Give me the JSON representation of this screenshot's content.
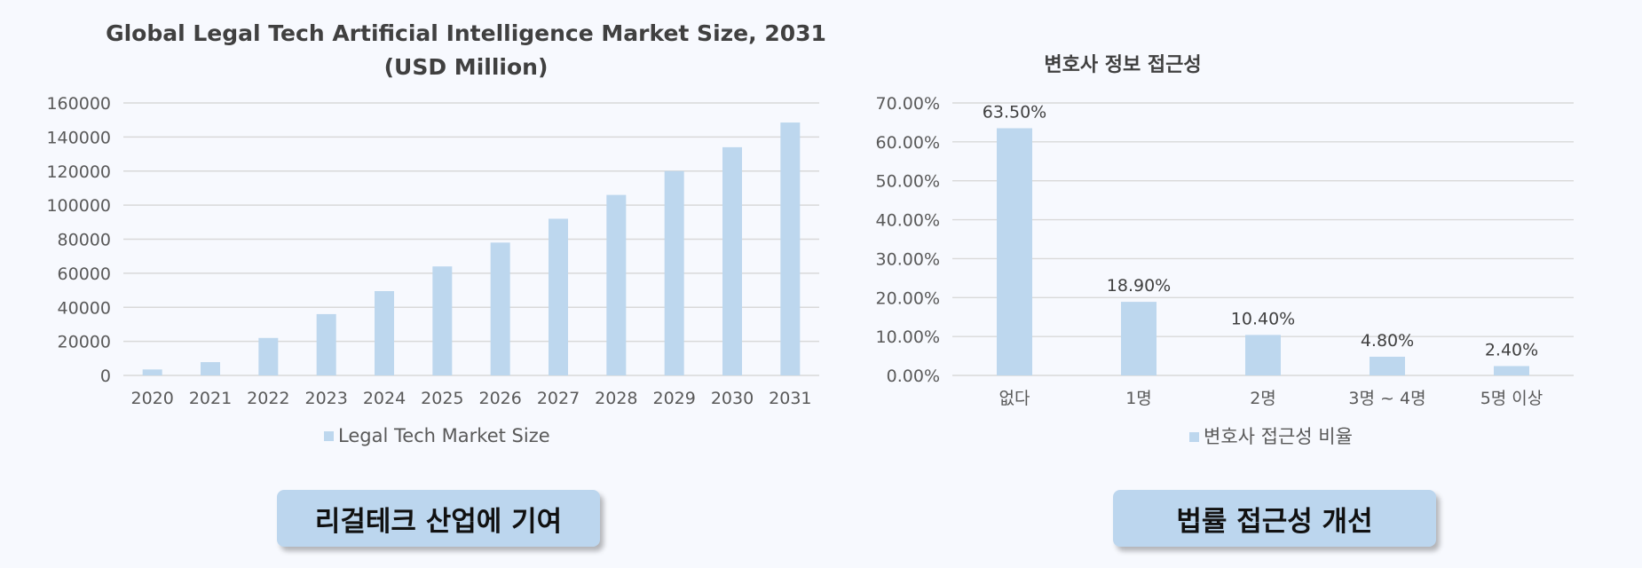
{
  "chart_data": [
    {
      "type": "bar",
      "title": "Global Legal Tech Artificial Intelligence Market Size, 2031",
      "subtitle": "(USD Million)",
      "categories": [
        "2020",
        "2021",
        "2022",
        "2023",
        "2024",
        "2025",
        "2026",
        "2027",
        "2028",
        "2029",
        "2030",
        "2031"
      ],
      "series": [
        {
          "name": "Legal Tech Market Size",
          "values": [
            3500,
            7800,
            22000,
            36000,
            49500,
            64000,
            78000,
            92000,
            106000,
            120000,
            134000,
            148500
          ]
        }
      ],
      "ylim": [
        0,
        160000
      ],
      "yticks": [
        "0",
        "20000",
        "40000",
        "60000",
        "80000",
        "100000",
        "120000",
        "140000",
        "160000"
      ],
      "grid": true,
      "legend": "bottom",
      "bar_color": "#bdd7ee"
    },
    {
      "type": "bar",
      "title": "변호사 정보 접근성",
      "categories": [
        "없다",
        "1명",
        "2명",
        "3명 ~ 4명",
        "5명 이상"
      ],
      "series": [
        {
          "name": "변호사 접근성 비율",
          "values": [
            63.5,
            18.9,
            10.4,
            4.8,
            2.4
          ]
        }
      ],
      "data_labels": [
        "63.50%",
        "18.90%",
        "10.40%",
        "4.80%",
        "2.40%"
      ],
      "ylim": [
        0,
        70
      ],
      "yticks": [
        "0.00%",
        "10.00%",
        "20.00%",
        "30.00%",
        "40.00%",
        "50.00%",
        "60.00%",
        "70.00%"
      ],
      "grid": true,
      "legend": "bottom",
      "bar_color": "#bdd7ee"
    }
  ],
  "captions": {
    "left": "리걸테크 산업에 기여",
    "right": "법률 접근성 개선"
  }
}
